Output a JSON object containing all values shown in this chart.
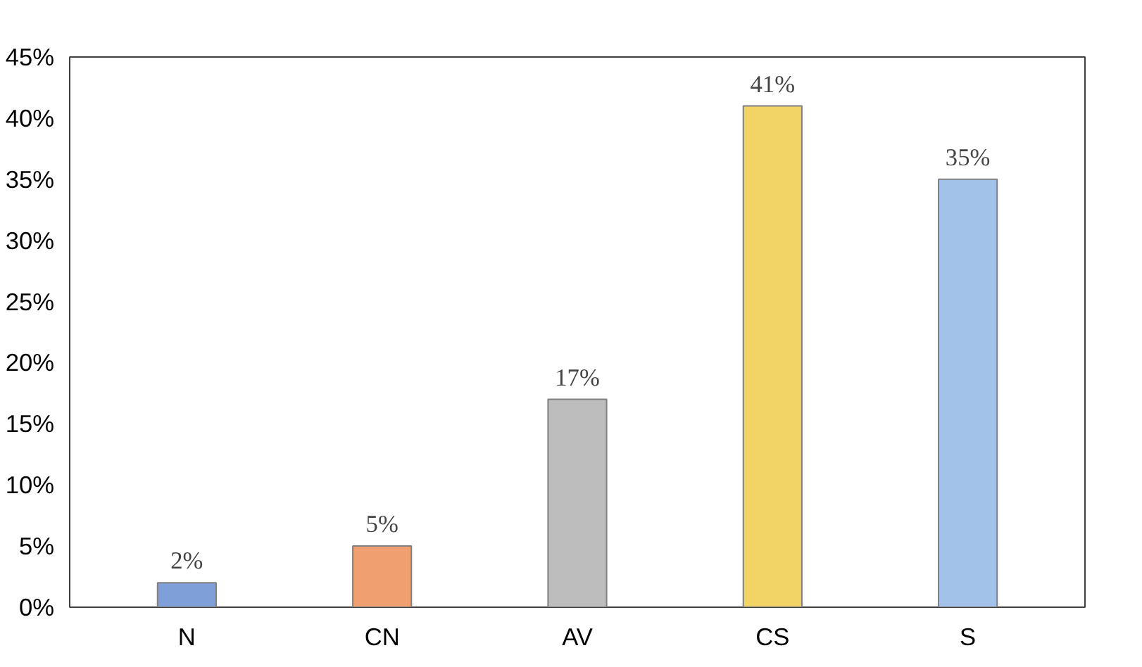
{
  "chart_data": {
    "type": "bar",
    "categories": [
      "N",
      "CN",
      "AV",
      "CS",
      "S"
    ],
    "values": [
      2,
      5,
      17,
      41,
      35
    ],
    "colors": [
      "#7f9fd8",
      "#f0a070",
      "#bdbdbd",
      "#f2d366",
      "#a3c2ea"
    ],
    "value_labels": [
      "2%",
      "5%",
      "17%",
      "41%",
      "35%"
    ],
    "ylim": [
      0,
      45
    ],
    "yticks": [
      {
        "value": 0,
        "label": "0%"
      },
      {
        "value": 5,
        "label": "5%"
      },
      {
        "value": 10,
        "label": "10%"
      },
      {
        "value": 15,
        "label": "15%"
      },
      {
        "value": 20,
        "label": "20%"
      },
      {
        "value": 25,
        "label": "25%"
      },
      {
        "value": 30,
        "label": "30%"
      },
      {
        "value": 35,
        "label": "35%"
      },
      {
        "value": 40,
        "label": "40%"
      },
      {
        "value": 45,
        "label": "45%"
      }
    ],
    "grid": false
  }
}
